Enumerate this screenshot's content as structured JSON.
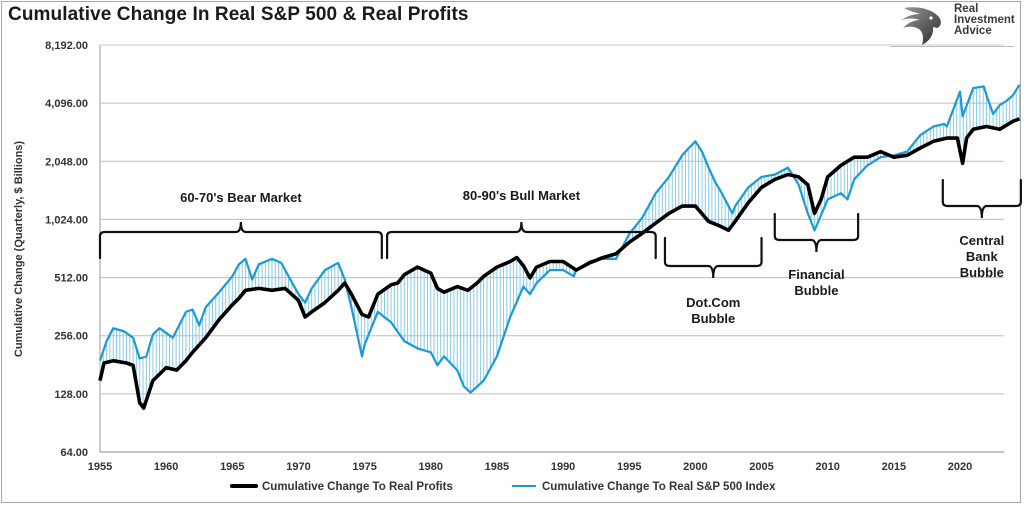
{
  "chart_data": {
    "type": "line",
    "title": "Cumulative Change In Real S&P 500 & Real Profits",
    "xlabel": "",
    "ylabel": "Cumulative Change (Quarterly, $ Billions)",
    "yscale": "log2",
    "ylim": [
      64,
      8192
    ],
    "xlim": [
      1955,
      2024.5
    ],
    "grid": "horizontal",
    "legend_position": "bottom-center",
    "y_ticks": [
      "8,192.00",
      "4,096.00",
      "2,048.00",
      "1,024.00",
      "512.00",
      "256.00",
      "128.00",
      "64.00"
    ],
    "y_tick_values": [
      8192,
      4096,
      2048,
      1024,
      512,
      256,
      128,
      64
    ],
    "x_ticks": [
      "1955",
      "1960",
      "1965",
      "1970",
      "1975",
      "1980",
      "1985",
      "1990",
      "1995",
      "2000",
      "2005",
      "2010",
      "2015",
      "2020"
    ],
    "x_tick_values": [
      1955,
      1960,
      1965,
      1970,
      1975,
      1980,
      1985,
      1990,
      1995,
      2000,
      2005,
      2010,
      2015,
      2020
    ],
    "series": [
      {
        "name": "Cumulative Change To Real Profits",
        "color": "#000000",
        "x": [
          1955,
          1955.3,
          1956,
          1957,
          1957.5,
          1958,
          1958.3,
          1959,
          1960,
          1960.8,
          1961.5,
          1962,
          1963,
          1964,
          1965,
          1965.5,
          1966,
          1967,
          1968,
          1969,
          1970,
          1970.5,
          1971,
          1972,
          1973,
          1973.5,
          1974,
          1974.8,
          1975.3,
          1976,
          1977,
          1977.5,
          1978,
          1979,
          1980,
          1980.5,
          1981,
          1982,
          1982.8,
          1983.5,
          1984,
          1985,
          1986,
          1986.5,
          1987,
          1987.5,
          1988,
          1989,
          1990,
          1991,
          1992,
          1993,
          1994,
          1995,
          1996,
          1997,
          1998,
          1999,
          2000,
          2001,
          2001.8,
          2002.5,
          2003,
          2004,
          2005,
          2006,
          2007,
          2007.8,
          2008.5,
          2009,
          2009.5,
          2010,
          2011,
          2012,
          2013,
          2014,
          2015,
          2016,
          2017,
          2018,
          2019,
          2019.8,
          2020.2,
          2020.5,
          2021,
          2022,
          2023,
          2024,
          2024.5
        ],
        "values": [
          150,
          185,
          190,
          185,
          180,
          115,
          108,
          150,
          175,
          170,
          190,
          210,
          250,
          310,
          370,
          400,
          440,
          450,
          440,
          450,
          390,
          320,
          340,
          380,
          440,
          480,
          420,
          330,
          320,
          420,
          470,
          480,
          530,
          580,
          540,
          450,
          430,
          460,
          440,
          480,
          520,
          580,
          620,
          650,
          590,
          510,
          580,
          620,
          620,
          560,
          610,
          650,
          680,
          780,
          870,
          980,
          1100,
          1200,
          1200,
          1000,
          950,
          900,
          1000,
          1250,
          1500,
          1650,
          1750,
          1700,
          1550,
          1100,
          1300,
          1700,
          1950,
          2150,
          2150,
          2300,
          2150,
          2200,
          2400,
          2600,
          2700,
          2700,
          2000,
          2700,
          3000,
          3100,
          3000,
          3300,
          3400
        ]
      },
      {
        "name": "Cumulative Change To Real S&P 500 Index",
        "color": "#1a9ad6",
        "x": [
          1955,
          1955.5,
          1956,
          1956.8,
          1957.5,
          1958,
          1958.5,
          1959,
          1959.5,
          1960.5,
          1961.5,
          1962,
          1962.5,
          1963,
          1964,
          1965,
          1965.5,
          1966,
          1966.5,
          1967,
          1968,
          1968.7,
          1969,
          1970,
          1970.5,
          1971,
          1972,
          1973,
          1973.5,
          1974,
          1974.8,
          1975,
          1975.5,
          1976,
          1977,
          1978,
          1979,
          1980,
          1980.5,
          1981,
          1982,
          1982.5,
          1983,
          1984,
          1985,
          1986,
          1987,
          1987.5,
          1988,
          1989,
          1990,
          1990.8,
          1991,
          1992,
          1993,
          1994,
          1995,
          1996,
          1997,
          1998,
          1999,
          1999.5,
          2000,
          2000.5,
          2001,
          2001.5,
          2002,
          2002.8,
          2003,
          2004,
          2005,
          2006,
          2007,
          2007.8,
          2008.5,
          2009,
          2009.3,
          2010,
          2011,
          2011.5,
          2012,
          2013,
          2014,
          2015,
          2016,
          2017,
          2018,
          2018.8,
          2019,
          2020,
          2020.2,
          2021,
          2021.8,
          2022,
          2022.5,
          2023,
          2023.5,
          2024,
          2024.5
        ],
        "values": [
          190,
          240,
          280,
          270,
          250,
          195,
          200,
          260,
          280,
          250,
          340,
          350,
          290,
          360,
          430,
          520,
          600,
          640,
          500,
          600,
          640,
          610,
          560,
          420,
          380,
          450,
          560,
          610,
          500,
          360,
          200,
          230,
          280,
          340,
          300,
          240,
          220,
          210,
          180,
          200,
          170,
          140,
          130,
          150,
          200,
          320,
          460,
          420,
          480,
          560,
          560,
          520,
          560,
          620,
          640,
          640,
          860,
          1050,
          1400,
          1700,
          2200,
          2400,
          2600,
          2300,
          1900,
          1600,
          1400,
          1100,
          1200,
          1500,
          1700,
          1750,
          1900,
          1550,
          1100,
          900,
          1000,
          1300,
          1400,
          1300,
          1650,
          1950,
          2150,
          2200,
          2300,
          2800,
          3100,
          3200,
          3100,
          4700,
          3500,
          4900,
          5000,
          4500,
          3600,
          4000,
          4200,
          4500,
          5100
        ]
      }
    ],
    "annotations": [
      {
        "text": "60-70's Bear Market",
        "x_range": [
          1955,
          1976.3
        ],
        "type": "brace-up"
      },
      {
        "text": "80-90's Bull Market",
        "x_range": [
          1976.7,
          1997
        ],
        "type": "brace-up"
      },
      {
        "text": "Dot.Com Bubble",
        "x_range": [
          1997.7,
          2005
        ],
        "type": "brace-down"
      },
      {
        "text": "Financial Bubble",
        "x_range": [
          2006,
          2012.3
        ],
        "type": "brace-down"
      },
      {
        "text": "Central Bank Bubble",
        "x_range": [
          2018.7,
          2024.6
        ],
        "type": "brace-down"
      }
    ]
  },
  "logo": {
    "line1": "Real",
    "line2": "Investment",
    "line3": "Advice",
    "icon": "eagle-head-icon"
  }
}
